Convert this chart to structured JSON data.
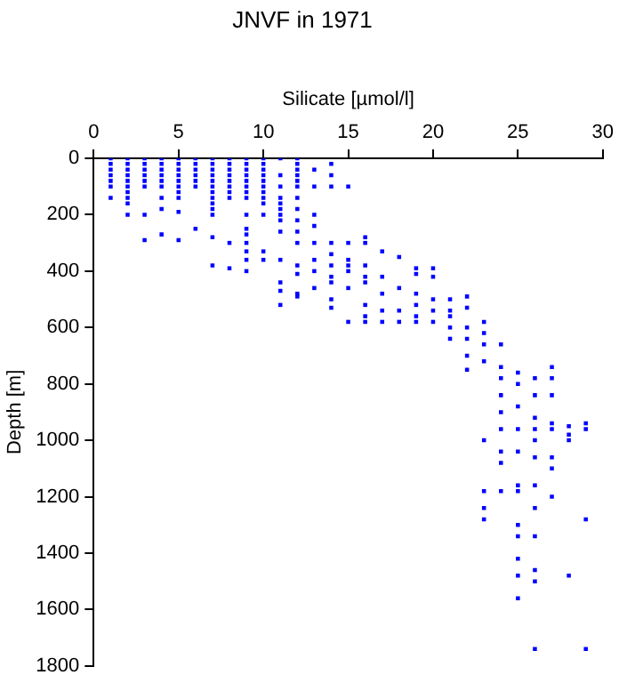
{
  "chart_data": {
    "type": "scatter",
    "title": "JNVF in 1971",
    "xlabel": "Silicate [µmol/l]",
    "ylabel": "Depth [m]",
    "xlim": [
      0,
      30
    ],
    "xticks": [
      0,
      5,
      10,
      15,
      20,
      25,
      30
    ],
    "ylim": [
      1800,
      0
    ],
    "yticks": [
      0,
      200,
      400,
      600,
      800,
      1000,
      1200,
      1400,
      1600,
      1800
    ],
    "grid": false,
    "legend": false,
    "marker": "square",
    "series": [
      {
        "color": "#0000ff",
        "x": [
          1,
          1,
          1,
          1,
          1,
          1,
          1,
          2,
          2,
          2,
          2,
          2,
          2,
          2,
          2,
          2,
          2,
          3,
          3,
          3,
          3,
          3,
          3,
          3,
          3,
          4,
          4,
          4,
          4,
          4,
          4,
          4,
          4,
          4,
          5,
          5,
          5,
          5,
          5,
          5,
          5,
          5,
          5,
          5,
          6,
          6,
          6,
          6,
          6,
          6,
          6,
          7,
          7,
          7,
          7,
          7,
          7,
          7,
          7,
          7,
          7,
          7,
          7,
          7,
          8,
          8,
          8,
          8,
          8,
          8,
          8,
          8,
          8,
          8,
          9,
          9,
          9,
          9,
          9,
          9,
          9,
          9,
          9,
          9,
          9,
          9,
          9,
          9,
          9,
          10,
          10,
          10,
          10,
          10,
          10,
          10,
          10,
          10,
          10,
          10,
          10,
          11,
          11,
          11,
          11,
          11,
          11,
          11,
          11,
          11,
          11,
          11,
          11,
          11,
          12,
          12,
          12,
          12,
          12,
          12,
          12,
          12,
          12,
          12,
          12,
          12,
          12,
          12,
          12,
          13,
          13,
          13,
          13,
          13,
          13,
          13,
          13,
          14,
          14,
          14,
          14,
          14,
          14,
          14,
          14,
          14,
          14,
          15,
          15,
          15,
          15,
          15,
          15,
          15,
          16,
          16,
          16,
          16,
          16,
          16,
          16,
          16,
          17,
          17,
          17,
          17,
          17,
          18,
          18,
          18,
          18,
          19,
          19,
          19,
          19,
          19,
          19,
          20,
          20,
          20,
          20,
          20,
          21,
          21,
          21,
          21,
          21,
          22,
          22,
          22,
          22,
          22,
          22,
          23,
          23,
          23,
          23,
          23,
          23,
          23,
          23,
          24,
          24,
          24,
          24,
          24,
          24,
          24,
          24,
          24,
          25,
          25,
          25,
          25,
          25,
          25,
          25,
          25,
          25,
          25,
          25,
          25,
          26,
          26,
          26,
          26,
          26,
          26,
          26,
          26,
          26,
          26,
          26,
          26,
          27,
          27,
          27,
          27,
          27,
          27,
          27,
          27,
          28,
          28,
          28,
          28,
          29,
          29,
          29,
          29
        ],
        "values": [
          0,
          20,
          40,
          60,
          80,
          100,
          140,
          0,
          20,
          40,
          60,
          80,
          100,
          120,
          140,
          160,
          200,
          0,
          20,
          40,
          60,
          80,
          100,
          200,
          290,
          0,
          20,
          40,
          60,
          80,
          100,
          140,
          180,
          270,
          0,
          20,
          40,
          60,
          80,
          100,
          120,
          140,
          190,
          290,
          0,
          20,
          40,
          60,
          80,
          100,
          250,
          0,
          20,
          40,
          60,
          80,
          100,
          120,
          140,
          160,
          180,
          200,
          280,
          380,
          0,
          20,
          40,
          60,
          80,
          100,
          120,
          140,
          300,
          390,
          0,
          20,
          40,
          60,
          80,
          100,
          120,
          140,
          200,
          250,
          270,
          300,
          330,
          360,
          400,
          0,
          20,
          40,
          60,
          80,
          100,
          120,
          140,
          160,
          200,
          330,
          360,
          0,
          60,
          100,
          140,
          160,
          180,
          200,
          220,
          260,
          360,
          440,
          470,
          520,
          0,
          20,
          40,
          60,
          80,
          100,
          140,
          180,
          220,
          260,
          300,
          380,
          410,
          480,
          490,
          40,
          100,
          200,
          240,
          300,
          360,
          400,
          460,
          20,
          60,
          100,
          300,
          340,
          380,
          420,
          440,
          500,
          530,
          100,
          300,
          360,
          380,
          400,
          460,
          580,
          280,
          300,
          380,
          420,
          440,
          520,
          560,
          580,
          330,
          420,
          480,
          540,
          580,
          350,
          460,
          540,
          580,
          390,
          410,
          480,
          520,
          560,
          580,
          390,
          420,
          500,
          540,
          580,
          500,
          540,
          560,
          600,
          640,
          490,
          530,
          600,
          640,
          700,
          750,
          580,
          620,
          660,
          720,
          1000,
          1180,
          1240,
          1280,
          660,
          740,
          780,
          840,
          900,
          960,
          1040,
          1080,
          1180,
          760,
          800,
          880,
          960,
          1040,
          1160,
          1180,
          1300,
          1340,
          1420,
          1480,
          1560,
          780,
          840,
          920,
          960,
          1000,
          1060,
          1160,
          1240,
          1340,
          1460,
          1500,
          1740,
          740,
          780,
          840,
          940,
          960,
          1060,
          1100,
          1200,
          950,
          980,
          1000,
          1480,
          940,
          960,
          1280,
          1740
        ]
      }
    ]
  }
}
